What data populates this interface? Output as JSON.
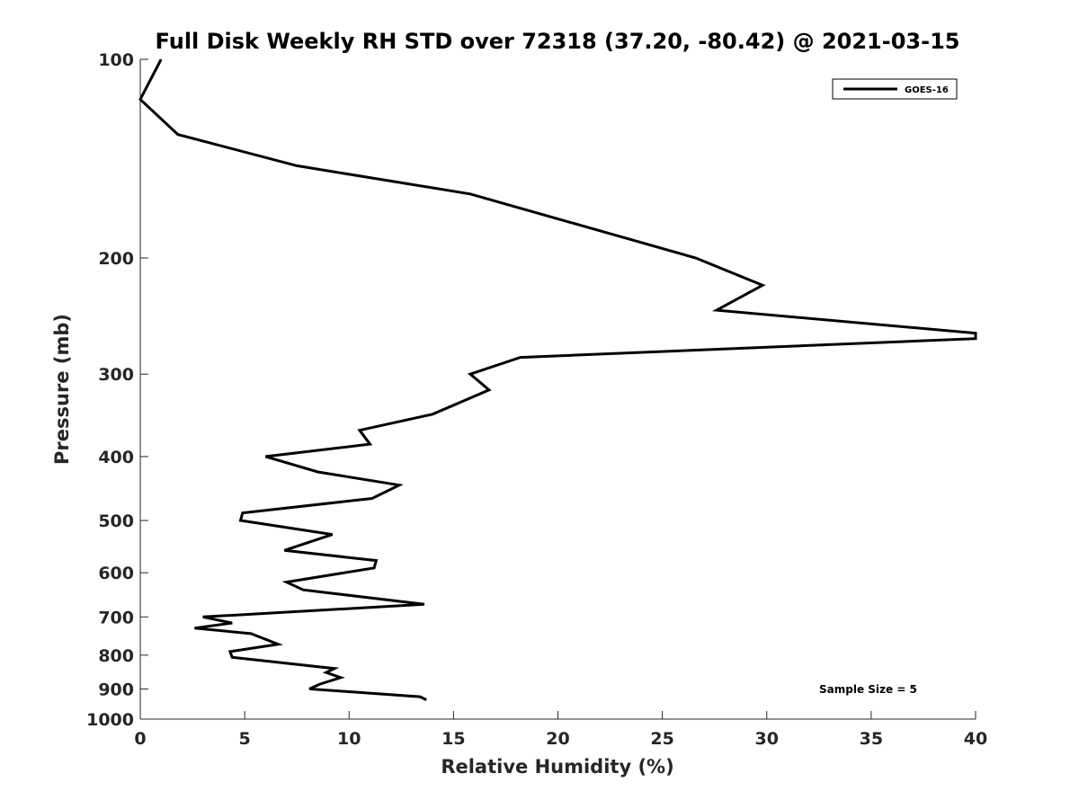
{
  "chart_data": {
    "type": "line",
    "title": "Full Disk Weekly RH STD over 72318 (37.20, -80.42) @ 2021-03-15",
    "xlabel": "Relative Humidity (%)",
    "ylabel": "Pressure (mb)",
    "xlim": [
      0,
      40
    ],
    "ylim": [
      100,
      1000
    ],
    "yscale": "log",
    "yreversed": true,
    "grid": false,
    "legend_position": "top-right",
    "x_ticks": [
      0,
      5,
      10,
      15,
      20,
      25,
      30,
      35,
      40
    ],
    "y_ticks": [
      100,
      200,
      300,
      400,
      500,
      600,
      700,
      800,
      900,
      1000
    ],
    "annotation": "Sample Size = 5",
    "series": [
      {
        "name": "GOES-16",
        "color": "#000000",
        "points": [
          [
            1.0,
            100
          ],
          [
            0.0,
            115
          ],
          [
            1.8,
            130
          ],
          [
            7.5,
            145
          ],
          [
            15.8,
            160
          ],
          [
            26.6,
            200
          ],
          [
            29.8,
            220
          ],
          [
            27.6,
            240
          ],
          [
            40.0,
            260
          ],
          [
            40.0,
            265
          ],
          [
            18.2,
            283
          ],
          [
            15.8,
            300
          ],
          [
            16.7,
            317
          ],
          [
            14.0,
            345
          ],
          [
            10.5,
            365
          ],
          [
            11.0,
            383
          ],
          [
            6.0,
            400
          ],
          [
            8.5,
            422
          ],
          [
            12.4,
            442
          ],
          [
            11.1,
            463
          ],
          [
            4.9,
            487
          ],
          [
            4.8,
            500
          ],
          [
            9.2,
            525
          ],
          [
            6.9,
            555
          ],
          [
            11.3,
            575
          ],
          [
            11.2,
            590
          ],
          [
            7.0,
            620
          ],
          [
            7.8,
            637
          ],
          [
            13.6,
            670
          ],
          [
            3.0,
            700
          ],
          [
            4.4,
            715
          ],
          [
            2.6,
            728
          ],
          [
            5.3,
            742
          ],
          [
            6.6,
            770
          ],
          [
            4.3,
            790
          ],
          [
            4.4,
            806
          ],
          [
            9.3,
            838
          ],
          [
            8.9,
            850
          ],
          [
            9.6,
            865
          ],
          [
            8.6,
            885
          ],
          [
            8.1,
            900
          ],
          [
            13.4,
            925
          ],
          [
            13.7,
            935
          ]
        ]
      }
    ]
  }
}
